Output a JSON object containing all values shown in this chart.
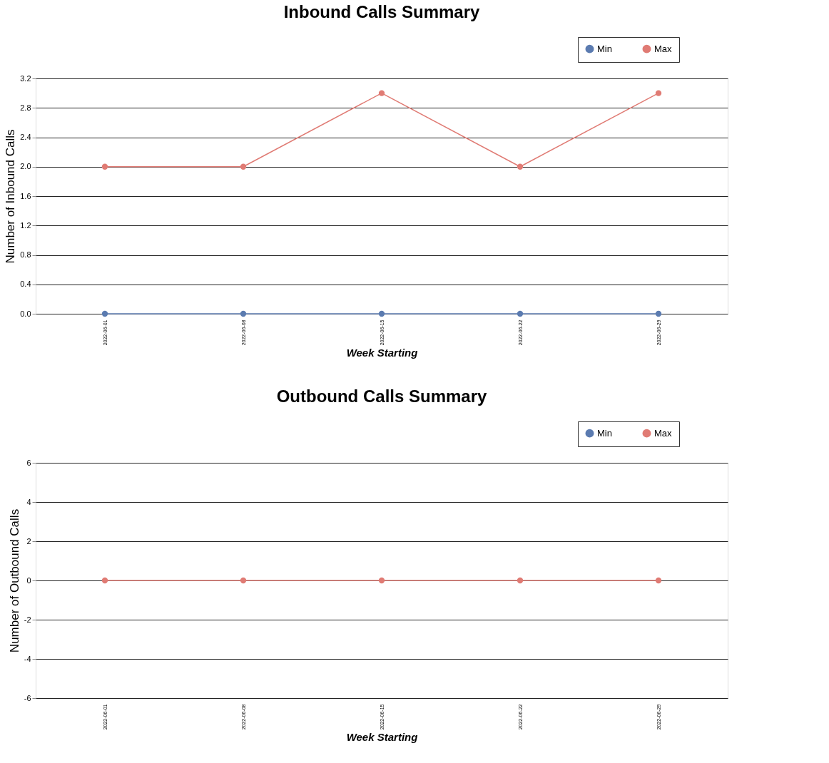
{
  "chart_data": [
    {
      "type": "line",
      "title": "Inbound Calls Summary",
      "xlabel": "Week Starting",
      "ylabel": "Number of Inbound Calls",
      "categories": [
        "2022-06-01",
        "2022-06-08",
        "2022-06-15",
        "2022-06-22",
        "2022-06-29"
      ],
      "series": [
        {
          "name": "Min",
          "color": "#5b7bb0",
          "values": [
            0,
            0,
            0,
            0,
            0
          ]
        },
        {
          "name": "Max",
          "color": "#e07b74",
          "values": [
            2,
            2,
            3,
            2,
            3
          ]
        }
      ],
      "ylim": [
        0,
        3.2
      ],
      "yticks": [
        {
          "value": 0,
          "label": "0.0"
        },
        0.4,
        0.8,
        1.2,
        1.6,
        {
          "value": 2,
          "label": "2.0"
        },
        2.4,
        2.8,
        3.2
      ],
      "grid": "y",
      "legend": "top right",
      "marker": "circle"
    },
    {
      "type": "line",
      "title": "Outbound Calls Summary",
      "xlabel": "Week Starting",
      "ylabel": "Number of Outbound Calls",
      "categories": [
        "2022-06-01",
        "2022-06-08",
        "2022-06-15",
        "2022-06-22",
        "2022-06-29"
      ],
      "series": [
        {
          "name": "Min",
          "color": "#5b7bb0",
          "values": [
            null,
            null,
            null,
            null,
            null
          ]
        },
        {
          "name": "Max",
          "color": "#e07b74",
          "values": [
            0,
            0,
            0,
            0,
            0
          ]
        }
      ],
      "ylim": [
        -6,
        6
      ],
      "yticks": [
        -6,
        -4,
        -2,
        0,
        2,
        4,
        6
      ],
      "grid": "y",
      "legend": "top right",
      "marker": "circle"
    }
  ]
}
